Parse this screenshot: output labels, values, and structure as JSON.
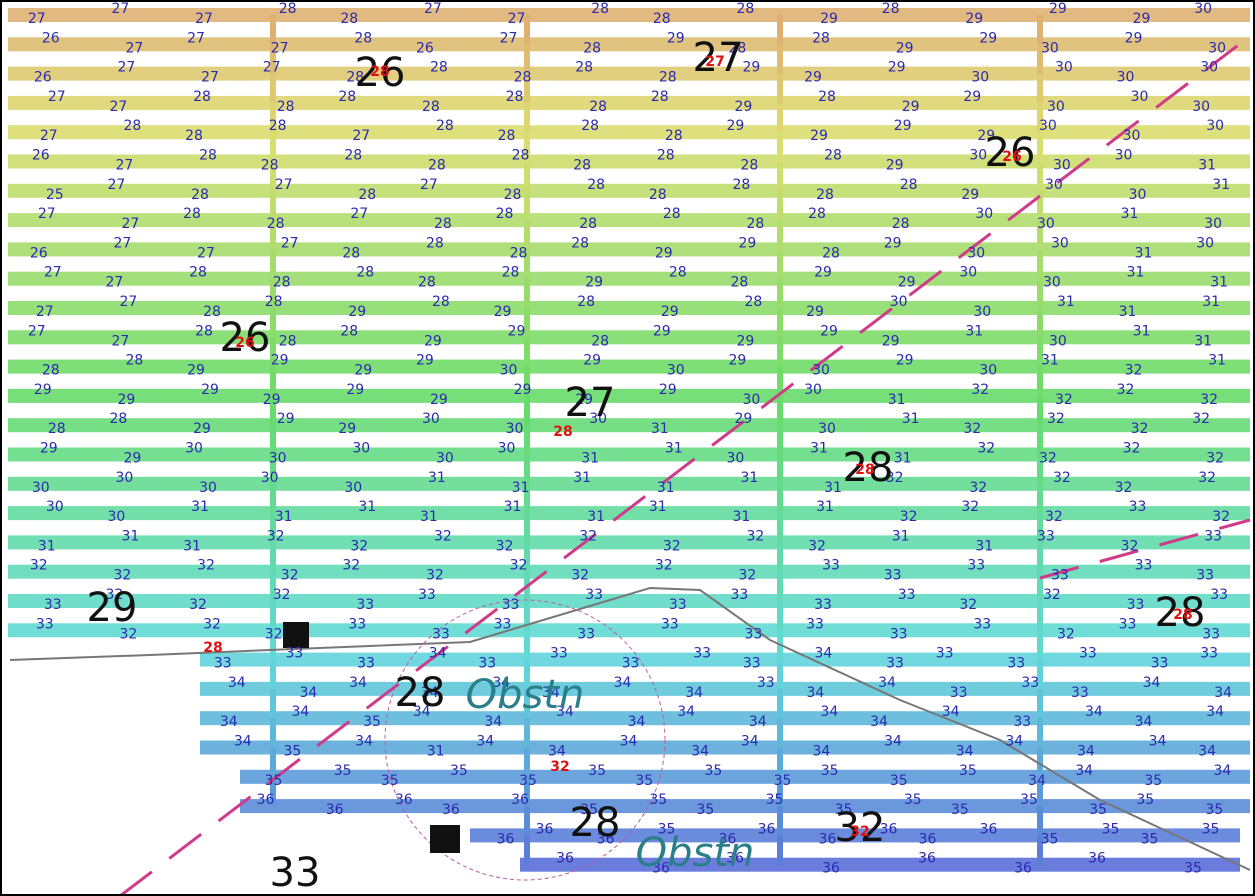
{
  "map": {
    "tracks": [
      [
        27,
        27,
        27,
        28,
        28,
        27,
        27,
        28,
        28,
        28,
        29,
        28,
        29,
        29,
        29,
        30
      ],
      [
        26,
        27,
        27,
        27,
        28,
        26,
        27,
        28,
        29,
        28,
        28,
        29,
        29,
        30,
        29,
        30
      ],
      [
        26,
        27,
        27,
        27,
        28,
        28,
        28,
        28,
        28,
        29,
        29,
        29,
        30,
        30,
        30,
        30
      ],
      [
        27,
        27,
        28,
        28,
        28,
        28,
        28,
        28,
        28,
        29,
        28,
        29,
        29,
        30,
        30,
        30
      ],
      [
        27,
        28,
        28,
        28,
        27,
        28,
        28,
        28,
        28,
        29,
        29,
        29,
        29,
        30,
        30,
        30
      ],
      [
        26,
        27,
        28,
        28,
        28,
        28,
        28,
        28,
        28,
        28,
        28,
        29,
        30,
        30,
        30,
        31
      ],
      [
        25,
        27,
        28,
        27,
        28,
        27,
        28,
        28,
        28,
        28,
        28,
        28,
        29,
        30,
        30,
        31
      ],
      [
        27,
        27,
        28,
        28,
        27,
        28,
        28,
        28,
        28,
        28,
        28,
        28,
        30,
        30,
        31,
        30
      ],
      [
        26,
        27,
        27,
        27,
        28,
        28,
        28,
        28,
        29,
        29,
        28,
        29,
        30,
        30,
        31,
        30
      ],
      [
        27,
        27,
        28,
        28,
        28,
        28,
        28,
        29,
        28,
        28,
        29,
        29,
        30,
        30,
        31,
        31
      ],
      [
        27,
        27,
        28,
        28,
        29,
        28,
        29,
        28,
        29,
        28,
        29,
        30,
        30,
        31,
        31,
        31
      ],
      [
        27,
        27,
        28,
        28,
        28,
        29,
        29,
        28,
        29,
        29,
        29,
        29,
        31,
        30,
        31,
        31
      ],
      [
        28,
        28,
        29,
        29,
        29,
        29,
        30,
        29,
        30,
        29,
        30,
        29,
        30,
        31,
        32,
        31
      ],
      [
        29,
        29,
        29,
        29,
        29,
        29,
        29,
        29,
        29,
        30,
        30,
        31,
        32,
        32,
        32,
        32
      ],
      [
        28,
        28,
        29,
        29,
        29,
        30,
        30,
        30,
        31,
        29,
        30,
        31,
        32,
        32,
        32,
        32
      ],
      [
        29,
        29,
        30,
        30,
        30,
        30,
        30,
        31,
        31,
        30,
        31,
        31,
        32,
        32,
        32,
        32
      ],
      [
        30,
        30,
        30,
        30,
        30,
        31,
        31,
        31,
        31,
        31,
        31,
        32,
        32,
        32,
        32,
        32
      ],
      [
        30,
        30,
        31,
        31,
        31,
        31,
        31,
        31,
        31,
        31,
        31,
        32,
        32,
        32,
        33,
        32
      ],
      [
        31,
        31,
        31,
        32,
        32,
        32,
        32,
        32,
        32,
        32,
        32,
        31,
        31,
        33,
        32,
        33
      ],
      [
        32,
        32,
        32,
        32,
        32,
        32,
        32,
        32,
        32,
        32,
        33,
        33,
        33,
        33,
        33,
        33
      ],
      [
        33,
        32,
        32,
        32,
        33,
        33,
        33,
        33,
        33,
        33,
        33,
        33,
        32,
        32,
        33,
        33
      ],
      [
        33,
        32,
        32,
        32,
        33,
        33,
        33,
        33,
        33,
        33,
        33,
        33,
        33,
        32,
        33,
        33
      ],
      [
        33,
        33,
        33,
        34,
        33,
        33,
        33,
        33,
        33,
        34,
        33,
        33,
        33,
        33,
        33,
        33
      ],
      [
        34,
        34,
        34,
        34,
        34,
        34,
        34,
        34,
        33,
        34,
        34,
        33,
        33,
        33,
        34,
        34
      ],
      [
        34,
        34,
        35,
        34,
        34,
        34,
        34,
        34,
        34,
        34,
        34,
        34,
        33,
        34,
        34,
        34
      ],
      [
        34,
        35,
        34,
        31,
        34,
        34,
        34,
        34,
        34,
        34,
        34,
        34,
        34,
        34,
        34,
        34
      ],
      [
        35,
        35,
        35,
        35,
        35,
        35,
        35,
        35,
        35,
        35,
        35,
        35,
        34,
        34,
        35,
        34
      ],
      [
        36,
        36,
        36,
        36,
        36,
        35,
        35,
        35,
        35,
        35,
        35,
        35,
        35,
        35,
        35,
        35
      ],
      [
        36,
        36,
        36,
        35,
        36,
        36,
        36,
        36,
        36,
        36,
        35,
        35,
        35,
        35
      ],
      [
        36,
        36,
        36,
        36,
        36,
        36,
        36,
        35
      ]
    ],
    "depth_labels": [
      26,
      27,
      26,
      26,
      27,
      28,
      29,
      28,
      28,
      28,
      32,
      33
    ],
    "red_labels": [
      28,
      27,
      26,
      26,
      28,
      28,
      28,
      28,
      32,
      32
    ],
    "obstruction_labels": [
      "Obstn",
      "Obstn"
    ]
  }
}
